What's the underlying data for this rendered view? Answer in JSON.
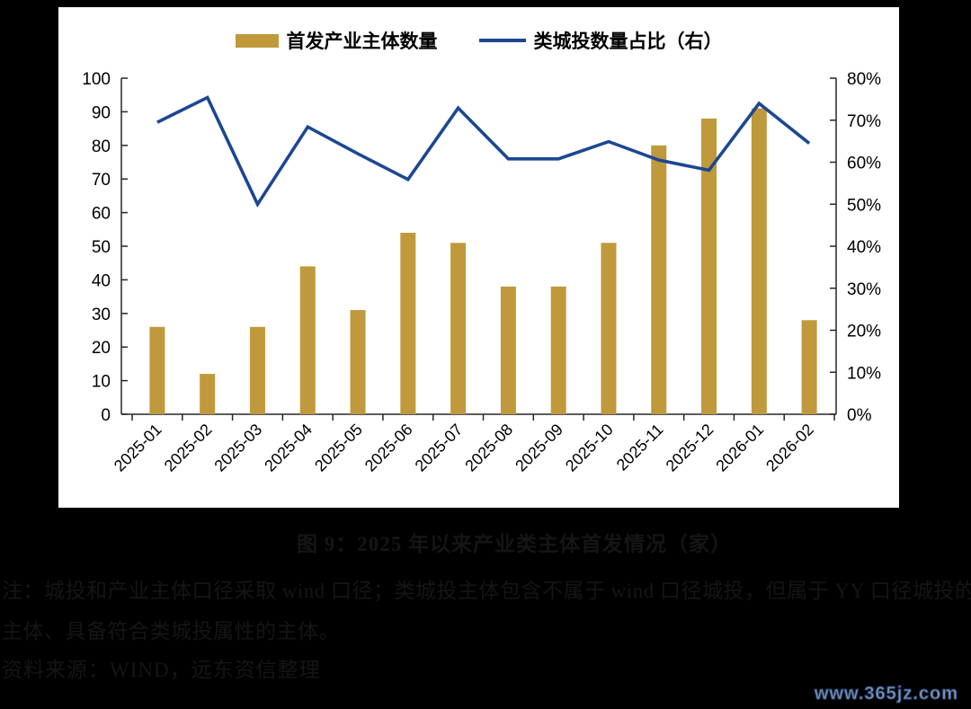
{
  "colors": {
    "background": "#000000",
    "panel": "#ffffff",
    "bar": "#C0993C",
    "line": "#1C4792",
    "axis": "#262626",
    "caption_text": "#151515",
    "watermark_fill": "#8a97a8",
    "watermark_stroke": "#27497f"
  },
  "legend": {
    "bar_label": "首发产业主体数量",
    "line_label": "类城投数量占比（右）"
  },
  "chart_data": {
    "type": "bar",
    "title": "",
    "categories": [
      "2025-01",
      "2025-02",
      "2025-03",
      "2025-04",
      "2025-05",
      "2025-06",
      "2025-07",
      "2025-08",
      "2025-09",
      "2025-10",
      "2025-11",
      "2025-12",
      "2026-01",
      "2026-02"
    ],
    "series": [
      {
        "name": "首发产业主体数量",
        "type": "bar",
        "axis": "left",
        "values": [
          26,
          12,
          26,
          44,
          31,
          54,
          51,
          38,
          38,
          51,
          80,
          88,
          91,
          28
        ]
      },
      {
        "name": "类城投数量占比（右）",
        "type": "line",
        "axis": "right",
        "unit": "%",
        "values": [
          69.5,
          75.4,
          50.0,
          68.4,
          62.0,
          55.9,
          72.9,
          60.8,
          60.8,
          64.9,
          60.5,
          58.1,
          74.0,
          64.5
        ]
      }
    ],
    "left_axis": {
      "min": 0,
      "max": 100,
      "step": 10,
      "ticks": [
        "0",
        "10",
        "20",
        "30",
        "40",
        "50",
        "60",
        "70",
        "80",
        "90",
        "100"
      ]
    },
    "right_axis": {
      "min": 0,
      "max": 80,
      "step": 10,
      "ticks": [
        "0%",
        "10%",
        "20%",
        "30%",
        "40%",
        "50%",
        "60%",
        "70%",
        "80%"
      ]
    },
    "grid": false,
    "legend_position": "top-center"
  },
  "caption": {
    "title": "图 9：2025 年以来产业类主体首发情况（家）",
    "note_line1": "注：城投和产业主体口径采取 wind 口径；类城投主体包含不属于 wind 口径城投，但属于 YY 口径城投的",
    "note_line2": "主体、具备符合类城投属性的主体。",
    "source": "资料来源：WIND，远东资信整理"
  },
  "watermark": "www.365jz.com"
}
